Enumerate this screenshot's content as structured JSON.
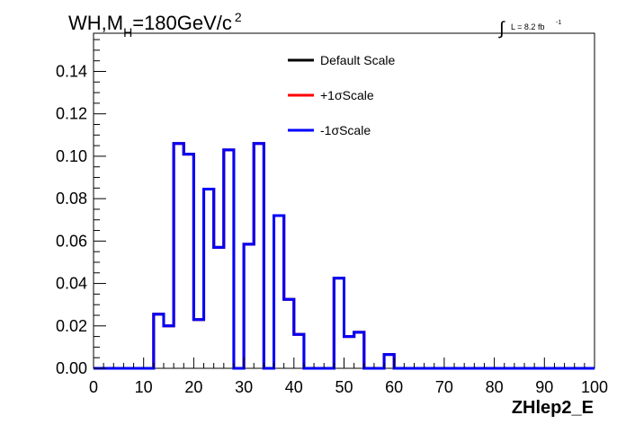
{
  "chart_data": {
    "type": "step",
    "title": {
      "prefix": "WH,M",
      "subscript": "H",
      "value": "=180GeV/c",
      "superscript": "2"
    },
    "luminosity": {
      "integral": "∫",
      "text": "L = 8.2 fb",
      "superscript": "-1"
    },
    "xlabel": "ZHlep2_E",
    "ylabel": "",
    "xlim": [
      0,
      100
    ],
    "ylim": [
      0,
      0.158
    ],
    "x_ticks": [
      0,
      10,
      20,
      30,
      40,
      50,
      60,
      70,
      80,
      90,
      100
    ],
    "x_tick_labels": [
      "0",
      "10",
      "20",
      "30",
      "40",
      "50",
      "60",
      "70",
      "80",
      "90",
      "100"
    ],
    "y_ticks": [
      0,
      0.02,
      0.04,
      0.06,
      0.08,
      0.1,
      0.12,
      0.14
    ],
    "y_tick_labels": [
      "0.00",
      "0.02",
      "0.04",
      "0.06",
      "0.08",
      "0.10",
      "0.12",
      "0.14"
    ],
    "grid": false,
    "legend_position": "top-center",
    "bin_edges": [
      0,
      2,
      4,
      6,
      8,
      10,
      12,
      14,
      16,
      18,
      20,
      22,
      24,
      26,
      28,
      30,
      32,
      34,
      36,
      38,
      40,
      42,
      44,
      46,
      48,
      50,
      52,
      54,
      56,
      58,
      60,
      62,
      64,
      66,
      68,
      70,
      72,
      74,
      76,
      78,
      80,
      82,
      84,
      86,
      88,
      90,
      92,
      94,
      96,
      98,
      100
    ],
    "series": [
      {
        "name": "Default Scale",
        "color": "#000000",
        "values": [
          0,
          0,
          0,
          0,
          0,
          0,
          0.0255,
          0.02,
          0.106,
          0.101,
          0.023,
          0.0845,
          0.057,
          0.103,
          0,
          0.0585,
          0.106,
          0,
          0.072,
          0.0325,
          0.016,
          0,
          0,
          0,
          0.0425,
          0.015,
          0.017,
          0,
          0,
          0.0065,
          0,
          0,
          0,
          0,
          0,
          0,
          0,
          0,
          0,
          0,
          0,
          0,
          0,
          0,
          0,
          0,
          0,
          0,
          0,
          0
        ]
      },
      {
        "name": "+1σScale",
        "color": "#ff0000",
        "values": [
          0,
          0,
          0,
          0,
          0,
          0,
          0.0255,
          0.02,
          0.106,
          0.101,
          0.023,
          0.0845,
          0.057,
          0.103,
          0,
          0.0585,
          0.106,
          0,
          0.072,
          0.0325,
          0.016,
          0,
          0,
          0,
          0.0425,
          0.015,
          0.017,
          0,
          0,
          0.0065,
          0,
          0,
          0,
          0,
          0,
          0,
          0,
          0,
          0,
          0,
          0,
          0,
          0,
          0,
          0,
          0,
          0,
          0,
          0,
          0
        ]
      },
      {
        "name": "-1σScale",
        "color": "#0000ff",
        "values": [
          0,
          0,
          0,
          0,
          0,
          0,
          0.0255,
          0.02,
          0.106,
          0.101,
          0.023,
          0.0845,
          0.057,
          0.103,
          0,
          0.0585,
          0.106,
          0,
          0.072,
          0.0325,
          0.016,
          0,
          0,
          0,
          0.0425,
          0.015,
          0.017,
          0,
          0,
          0.0065,
          0,
          0,
          0,
          0,
          0,
          0,
          0,
          0,
          0,
          0,
          0,
          0,
          0,
          0,
          0,
          0,
          0,
          0,
          0,
          0
        ]
      }
    ]
  }
}
